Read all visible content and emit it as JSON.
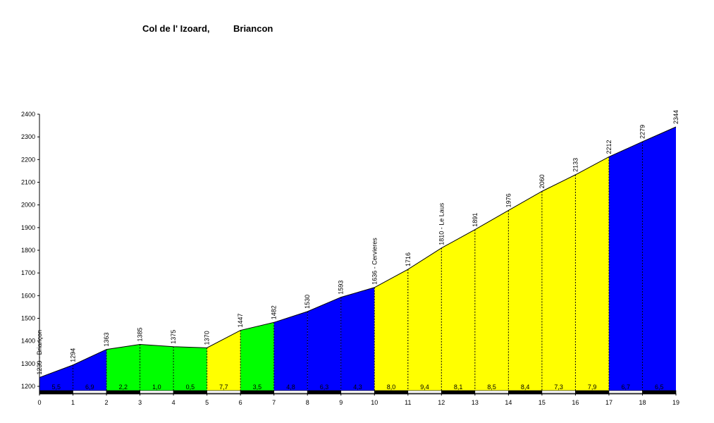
{
  "chart_data": {
    "type": "area",
    "title_left": "Col de l' Izoard,",
    "title_right": "Briancon",
    "xlabel": "",
    "ylabel": "",
    "xlim": [
      0,
      19
    ],
    "ylim": [
      1170,
      2400
    ],
    "y_ticks": [
      1200,
      1300,
      1400,
      1500,
      1600,
      1700,
      1800,
      1900,
      2000,
      2100,
      2200,
      2300,
      2400
    ],
    "x_ticks": [
      0,
      1,
      2,
      3,
      4,
      5,
      6,
      7,
      8,
      9,
      10,
      11,
      12,
      13,
      14,
      15,
      16,
      17,
      18,
      19
    ],
    "grid": false,
    "legend": "none",
    "points": [
      {
        "x": 0,
        "y": 1239,
        "label": "1239 - Briançon"
      },
      {
        "x": 1,
        "y": 1294,
        "label": "1294"
      },
      {
        "x": 2,
        "y": 1363,
        "label": "1363"
      },
      {
        "x": 3,
        "y": 1385,
        "label": "1385"
      },
      {
        "x": 4,
        "y": 1375,
        "label": "1375"
      },
      {
        "x": 5,
        "y": 1370,
        "label": "1370"
      },
      {
        "x": 6,
        "y": 1447,
        "label": "1447"
      },
      {
        "x": 7,
        "y": 1482,
        "label": "1482"
      },
      {
        "x": 8,
        "y": 1530,
        "label": "1530"
      },
      {
        "x": 9,
        "y": 1593,
        "label": "1593"
      },
      {
        "x": 10,
        "y": 1636,
        "label": "1636 - Cervieres"
      },
      {
        "x": 11,
        "y": 1716,
        "label": "1716"
      },
      {
        "x": 12,
        "y": 1810,
        "label": "1810 - Le Laus"
      },
      {
        "x": 13,
        "y": 1891,
        "label": "1891"
      },
      {
        "x": 14,
        "y": 1976,
        "label": "1976"
      },
      {
        "x": 15,
        "y": 2060,
        "label": "2060"
      },
      {
        "x": 16,
        "y": 2133,
        "label": "2133"
      },
      {
        "x": 17,
        "y": 2212,
        "label": "2212"
      },
      {
        "x": 18,
        "y": 2279,
        "label": "2279"
      },
      {
        "x": 19,
        "y": 2344,
        "label": "2344"
      }
    ],
    "segments": [
      {
        "from": 0,
        "to": 1,
        "gradient": "5,5",
        "color": "#0000ff"
      },
      {
        "from": 1,
        "to": 2,
        "gradient": "6,9",
        "color": "#0000ff"
      },
      {
        "from": 2,
        "to": 3,
        "gradient": "2,2",
        "color": "#00ff00"
      },
      {
        "from": 3,
        "to": 4,
        "gradient": "1,0",
        "color": "#00ff00"
      },
      {
        "from": 4,
        "to": 5,
        "gradient": "0,5",
        "color": "#00ff00"
      },
      {
        "from": 5,
        "to": 6,
        "gradient": "7,7",
        "color": "#ffff00"
      },
      {
        "from": 6,
        "to": 7,
        "gradient": "3,5",
        "color": "#00ff00"
      },
      {
        "from": 7,
        "to": 8,
        "gradient": "4,8",
        "color": "#0000ff"
      },
      {
        "from": 8,
        "to": 9,
        "gradient": "6,3",
        "color": "#0000ff"
      },
      {
        "from": 9,
        "to": 10,
        "gradient": "4,3",
        "color": "#0000ff"
      },
      {
        "from": 10,
        "to": 11,
        "gradient": "8,0",
        "color": "#ffff00"
      },
      {
        "from": 11,
        "to": 12,
        "gradient": "9,4",
        "color": "#ffff00"
      },
      {
        "from": 12,
        "to": 13,
        "gradient": "8,1",
        "color": "#ffff00"
      },
      {
        "from": 13,
        "to": 14,
        "gradient": "8,5",
        "color": "#ffff00"
      },
      {
        "from": 14,
        "to": 15,
        "gradient": "8,4",
        "color": "#ffff00"
      },
      {
        "from": 15,
        "to": 16,
        "gradient": "7,3",
        "color": "#ffff00"
      },
      {
        "from": 16,
        "to": 17,
        "gradient": "7,9",
        "color": "#ffff00"
      },
      {
        "from": 17,
        "to": 18,
        "gradient": "6,7",
        "color": "#0000ff"
      },
      {
        "from": 18,
        "to": 19,
        "gradient": "6,5",
        "color": "#0000ff"
      }
    ]
  }
}
